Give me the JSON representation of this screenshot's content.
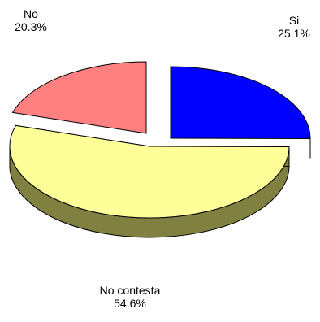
{
  "chart_data": {
    "type": "pie",
    "style": "3d-exploded",
    "slices": [
      {
        "label": "Si",
        "value": 25.1,
        "value_label": "25.1%",
        "color": "#0000ff",
        "side_color": "#00008b"
      },
      {
        "label": "No contesta",
        "value": 54.6,
        "value_label": "54.6%",
        "color": "#ffff99",
        "side_color": "#808040"
      },
      {
        "label": "No",
        "value": 20.3,
        "value_label": "20.3%",
        "color": "#ff8080",
        "side_color": "#803838"
      }
    ],
    "legend": "none",
    "outline_color": "#000000"
  }
}
